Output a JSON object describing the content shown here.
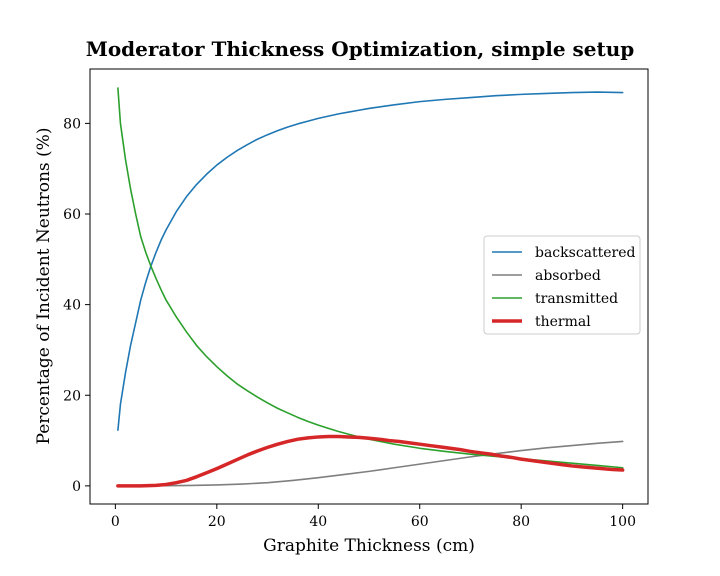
{
  "chart_data": {
    "type": "line",
    "title": "Moderator Thickness Optimization, simple setup",
    "xlabel": "Graphite Thickness (cm)",
    "ylabel": "Percentage of Incident Neutrons (%)",
    "xlim": [
      -5,
      105
    ],
    "ylim": [
      -4,
      92
    ],
    "xticks": [
      0,
      20,
      40,
      60,
      80,
      100
    ],
    "yticks": [
      0,
      20,
      40,
      60,
      80
    ],
    "grid": false,
    "legend_position": "center-right",
    "series": [
      {
        "name": "backscattered",
        "color": "#1f77b4",
        "x": [
          0.5,
          1,
          2,
          3,
          4,
          5,
          6,
          7,
          8,
          9,
          10,
          12,
          14,
          16,
          18,
          20,
          22,
          24,
          26,
          28,
          30,
          32,
          34,
          36,
          38,
          40,
          42,
          44,
          46,
          48,
          50,
          55,
          60,
          65,
          70,
          75,
          80,
          85,
          90,
          95,
          100
        ],
        "values": [
          12.3,
          18,
          25,
          31,
          36,
          41,
          45,
          48.5,
          51.5,
          54.2,
          56.5,
          60.5,
          63.8,
          66.5,
          68.8,
          70.8,
          72.5,
          74,
          75.3,
          76.5,
          77.5,
          78.4,
          79.2,
          79.9,
          80.5,
          81.1,
          81.6,
          82.1,
          82.5,
          82.9,
          83.3,
          84.1,
          84.8,
          85.3,
          85.7,
          86.1,
          86.4,
          86.6,
          86.8,
          86.9,
          86.8
        ]
      },
      {
        "name": "absorbed",
        "color": "#7f7f7f",
        "x": [
          0.5,
          5,
          10,
          15,
          20,
          25,
          30,
          35,
          40,
          45,
          50,
          55,
          60,
          65,
          70,
          75,
          80,
          85,
          90,
          95,
          100
        ],
        "values": [
          0,
          0,
          0.05,
          0.1,
          0.2,
          0.4,
          0.7,
          1.2,
          1.8,
          2.5,
          3.2,
          4,
          4.8,
          5.6,
          6.4,
          7.1,
          7.8,
          8.4,
          8.9,
          9.4,
          9.8
        ]
      },
      {
        "name": "transmitted",
        "color": "#2ca02c",
        "x": [
          0.5,
          1,
          2,
          3,
          4,
          5,
          6,
          7,
          8,
          9,
          10,
          12,
          14,
          16,
          18,
          20,
          22,
          24,
          26,
          28,
          30,
          32,
          34,
          36,
          38,
          40,
          42,
          44,
          46,
          48,
          50,
          55,
          60,
          65,
          70,
          75,
          80,
          85,
          90,
          95,
          100
        ],
        "values": [
          87.8,
          80,
          72,
          65.5,
          60,
          55,
          51.5,
          48.5,
          45.8,
          43.3,
          41,
          37.3,
          34,
          31,
          28.5,
          26.3,
          24.3,
          22.5,
          21,
          19.6,
          18.3,
          17.1,
          16.1,
          15.1,
          14.2,
          13.4,
          12.7,
          12,
          11.4,
          10.8,
          10.3,
          9.2,
          8.3,
          7.6,
          7,
          6.5,
          6,
          5.5,
          5,
          4.5,
          4
        ]
      },
      {
        "name": "thermal",
        "color": "#d62728",
        "x": [
          0.5,
          5,
          8,
          10,
          12,
          14,
          16,
          18,
          20,
          22,
          24,
          26,
          28,
          30,
          32,
          34,
          36,
          38,
          40,
          42,
          44,
          46,
          48,
          50,
          52,
          54,
          56,
          58,
          60,
          62,
          64,
          66,
          68,
          70,
          72,
          74,
          76,
          78,
          80,
          82,
          84,
          86,
          88,
          90,
          92,
          94,
          96,
          98,
          100
        ],
        "values": [
          0,
          0,
          0.1,
          0.3,
          0.7,
          1.2,
          2,
          2.9,
          3.8,
          4.8,
          5.8,
          6.8,
          7.7,
          8.5,
          9.2,
          9.8,
          10.3,
          10.6,
          10.8,
          10.9,
          10.9,
          10.8,
          10.7,
          10.5,
          10.3,
          10,
          9.8,
          9.5,
          9.2,
          8.9,
          8.6,
          8.3,
          8,
          7.6,
          7.3,
          7,
          6.6,
          6.3,
          5.9,
          5.6,
          5.3,
          5,
          4.7,
          4.4,
          4.2,
          4,
          3.8,
          3.6,
          3.5
        ]
      }
    ]
  }
}
